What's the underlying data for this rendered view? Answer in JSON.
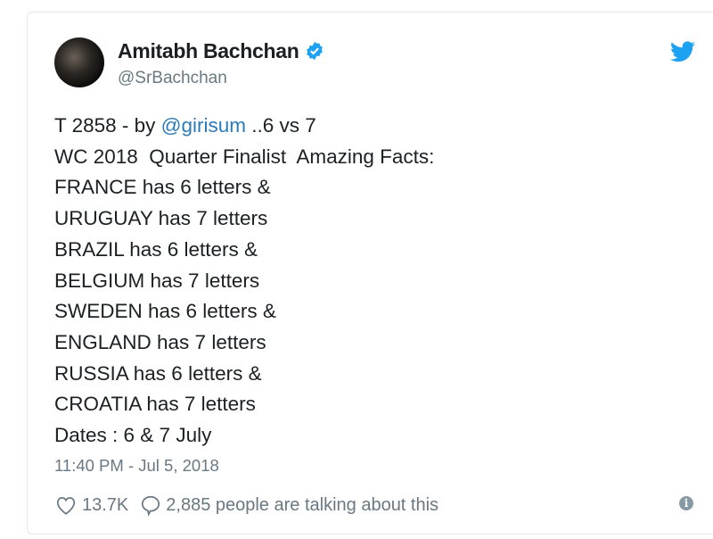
{
  "tweet": {
    "author_name": "Amitabh Bachchan",
    "handle": "@SrBachchan",
    "verified": true,
    "first_line_prefix": "T 2858 - by ",
    "first_line_mention": "@girisum",
    "first_line_suffix": " ..6 vs 7",
    "lines": [
      "WC 2018  Quarter Finalist  Amazing Facts:",
      "FRANCE has 6 letters &",
      "URUGUAY has 7 letters",
      "BRAZIL has 6 letters &",
      "BELGIUM has 7 letters",
      "SWEDEN has 6 letters &",
      "ENGLAND has 7 letters",
      "RUSSIA has 6 letters &",
      "CROATIA has 7 letters",
      "Dates : 6 & 7 July"
    ],
    "timestamp": "11:40 PM - Jul 5, 2018",
    "likes": "13.7K",
    "talking": "2,885 people are talking about this"
  },
  "icons": {
    "brand": "twitter-bird-icon",
    "verified": "verified-badge-icon",
    "like": "heart-icon",
    "reply": "speech-bubble-icon",
    "info": "info-icon"
  },
  "colors": {
    "brand": "#1da1f2",
    "mention": "#2b7bb9",
    "meta": "#697882"
  }
}
